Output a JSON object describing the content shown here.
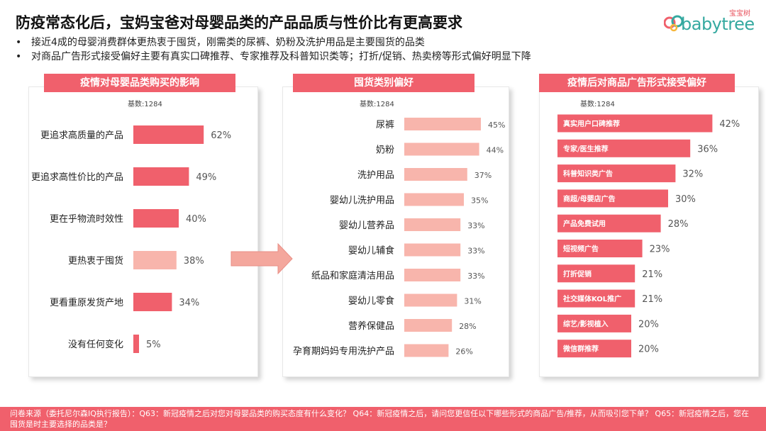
{
  "title": "防疫常态化后，宝妈宝爸对母婴品类的产品品质与性价比有更高要求",
  "logo": {
    "word": "babytree",
    "sub": "宝宝树"
  },
  "bullets": [
    "接近4成的母婴消费群体更热衷于囤货，刚需类的尿裤、奶粉及洗护用品是主要囤货的品类",
    "对商品广告形式接受偏好主要有真实口碑推荐、专家推荐及科普知识类等；打折/促销、热卖榜等形式偏好明显下降"
  ],
  "bullet_marker": "•",
  "footer": "问卷来源（委托尼尔森IQ执行报告）：Q63：新冠疫情之后对您对母婴品类的购买态度有什么变化？ Q64：新冠疫情之后，请问您更信任以下哪些形式的商品广告/推荐，从而吸引您下单？ Q65：新冠疫情之后，您在囤货是时主要选择的品类是？",
  "colors": {
    "accent": "#f0606c",
    "light": "#f8b5ac",
    "logo_teal": "#35a9a0"
  },
  "chart_data": [
    {
      "type": "bar",
      "orientation": "horizontal",
      "title": "疫情对母婴品类购买的影响",
      "subtitle": "基数:1284",
      "categories": [
        "更追求高质量的产品",
        "更追求高性价比的产品",
        "更在乎物流时效性",
        "更热衷于囤货",
        "更看重原发货产地",
        "没有任何变化"
      ],
      "values": [
        62,
        49,
        40,
        38,
        34,
        5
      ],
      "value_labels": [
        "62%",
        "49%",
        "40%",
        "38%",
        "34%",
        "5%"
      ],
      "highlight": [
        false,
        false,
        false,
        true,
        false,
        false
      ],
      "unit": "%"
    },
    {
      "type": "bar",
      "orientation": "horizontal",
      "title": "囤货类别偏好",
      "subtitle": "基数:1284",
      "categories": [
        "尿裤",
        "奶粉",
        "洗护用品",
        "婴幼儿洗护用品",
        "婴幼儿营养品",
        "婴幼儿辅食",
        "纸品和家庭清洁用品",
        "婴幼儿零食",
        "营养保健品",
        "孕育期妈妈专用洗护产品"
      ],
      "values": [
        45,
        44,
        37,
        35,
        33,
        33,
        33,
        31,
        28,
        26
      ],
      "value_labels": [
        "45%",
        "44%",
        "37%",
        "35%",
        "33%",
        "33%",
        "33%",
        "31%",
        "28%",
        "26%"
      ],
      "unit": "%"
    },
    {
      "type": "bar",
      "orientation": "horizontal",
      "title": "疫情后对商品广告形式接受偏好",
      "subtitle": "基数:1284",
      "categories": [
        "真实用户口碑推荐",
        "专家/医生推荐",
        "科普知识类广告",
        "商超/母婴店广告",
        "产品免费试用",
        "短视频广告",
        "打折促销",
        "社交媒体KOL推广",
        "综艺/影视植入",
        "微信群推荐"
      ],
      "values": [
        42,
        36,
        32,
        30,
        28,
        23,
        21,
        21,
        20,
        20
      ],
      "value_labels": [
        "42%",
        "36%",
        "32%",
        "30%",
        "28%",
        "23%",
        "21%",
        "21%",
        "20%",
        "20%"
      ],
      "unit": "%"
    }
  ]
}
